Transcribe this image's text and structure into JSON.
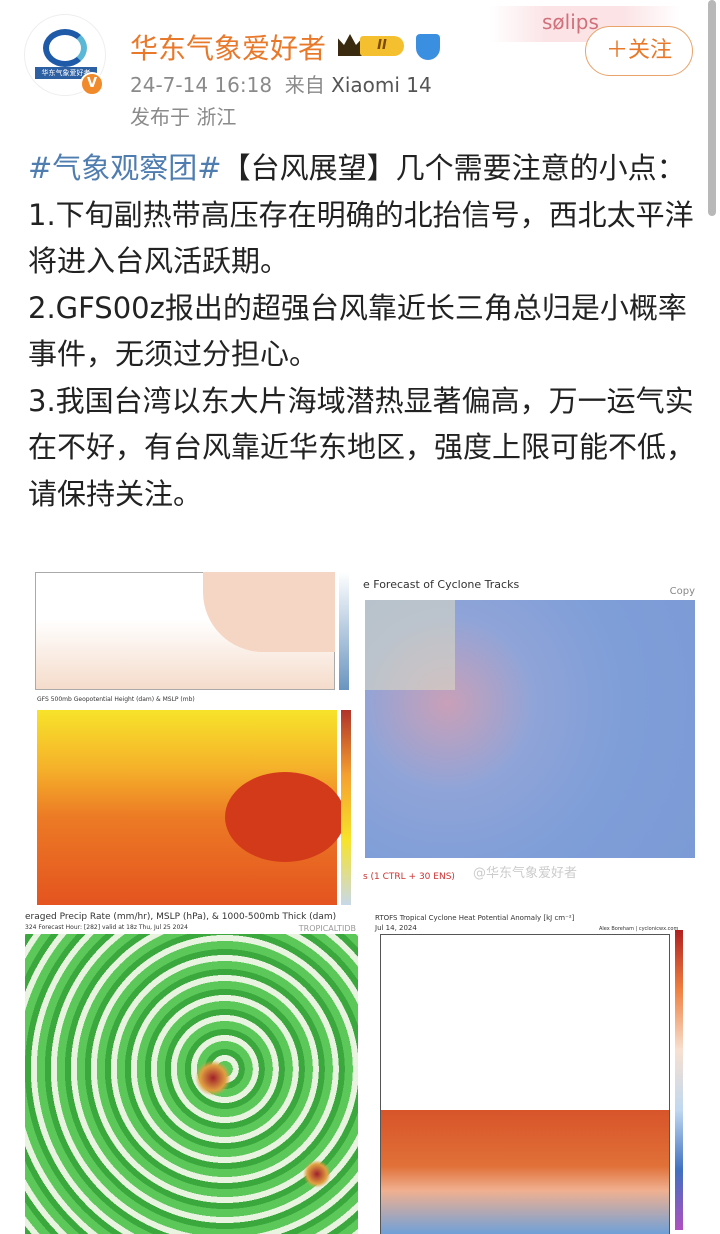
{
  "user": {
    "name": "华东气象爱好者",
    "avatar_text": "华东气象爱好者",
    "verified_badge": "V",
    "level_badge": "II",
    "timestamp": "24-7-14 16:18",
    "source_prefix": "来自",
    "source_device": "Xiaomi 14",
    "location": "发布于 浙江"
  },
  "decoration": {
    "text": "sølips"
  },
  "follow_button": "＋关注",
  "post": {
    "hashtag": "#气象观察团#",
    "lines": [
      "【台风展望】几个需要注意的小点：",
      "1.下旬副热带高压存在明确的北抬信号，西北太平洋将进入台风活跃期。",
      "2.GFS00z报出的超强台风靠近长三角总归是小概率事件，无须过分担心。",
      "3.我国台湾以东大片海域潜热显著偏高，万一运气实在不好，有台风靠近华东地区，强度上限可能不低，请保持关注。"
    ]
  },
  "images": {
    "img1_caption": "GFS 500mb Geopotential Height (dam) & MSLP (mb)",
    "img2_title": "e Forecast of Cyclone Tracks",
    "img2_copy": "Copy",
    "img2_legend": "s (1 CTRL + 30 ENS)",
    "img2_watermark": "@华东气象爱好者",
    "img3_title": "eraged Precip Rate (mm/hr), MSLP (hPa), & 1000-500mb Thick (dam)",
    "img3_sub": "324  Forecast Hour: [282]   valid at 18z Thu, Jul 25 2024",
    "img3_brand": "TROPICALTIDB",
    "img4_title": "RTOFS Tropical Cyclone Heat Potential Anomaly [kJ cm⁻²]",
    "img4_date": "Jul 14, 2024",
    "img4_credit": "Alex Boreham | cyclonicwx.com"
  }
}
